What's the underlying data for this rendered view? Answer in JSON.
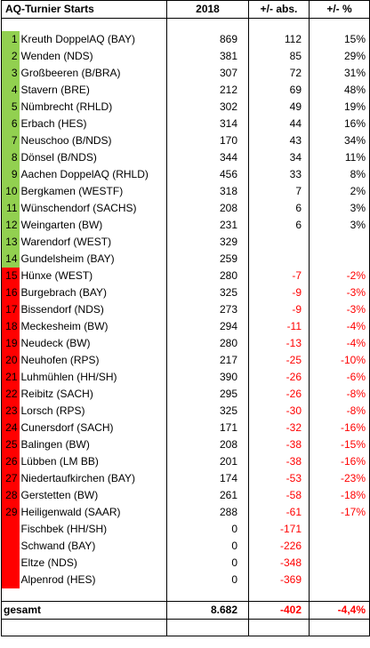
{
  "header": {
    "title": "AQ-Turnier Starts",
    "year": "2018",
    "abs": "+/- abs.",
    "pct": "+/- %"
  },
  "rows": [
    {
      "rank": "1",
      "name": "Kreuth DoppelAQ (BAY)",
      "starts": "869",
      "abs": "112",
      "pct": "15%",
      "status": "green"
    },
    {
      "rank": "2",
      "name": "Wenden (NDS)",
      "starts": "381",
      "abs": "85",
      "pct": "29%",
      "status": "green"
    },
    {
      "rank": "3",
      "name": "Großbeeren (B/BRA)",
      "starts": "307",
      "abs": "72",
      "pct": "31%",
      "status": "green"
    },
    {
      "rank": "4",
      "name": "Stavern (BRE)",
      "starts": "212",
      "abs": "69",
      "pct": "48%",
      "status": "green"
    },
    {
      "rank": "5",
      "name": "Nümbrecht (RHLD)",
      "starts": "302",
      "abs": "49",
      "pct": "19%",
      "status": "green"
    },
    {
      "rank": "6",
      "name": "Erbach (HES)",
      "starts": "314",
      "abs": "44",
      "pct": "16%",
      "status": "green"
    },
    {
      "rank": "7",
      "name": "Neuschoo (B/NDS)",
      "starts": "170",
      "abs": "43",
      "pct": "34%",
      "status": "green"
    },
    {
      "rank": "8",
      "name": "Dönsel (B/NDS)",
      "starts": "344",
      "abs": "34",
      "pct": "11%",
      "status": "green"
    },
    {
      "rank": "9",
      "name": "Aachen DoppelAQ (RHLD)",
      "starts": "456",
      "abs": "33",
      "pct": "8%",
      "status": "green"
    },
    {
      "rank": "10",
      "name": "Bergkamen (WESTF)",
      "starts": "318",
      "abs": "7",
      "pct": "2%",
      "status": "green"
    },
    {
      "rank": "11",
      "name": "Wünschendorf (SACHS)",
      "starts": "208",
      "abs": "6",
      "pct": "3%",
      "status": "green"
    },
    {
      "rank": "12",
      "name": "Weingarten (BW)",
      "starts": "231",
      "abs": "6",
      "pct": "3%",
      "status": "green"
    },
    {
      "rank": "13",
      "name": "Warendorf (WEST)",
      "starts": "329",
      "abs": "",
      "pct": "",
      "status": "green"
    },
    {
      "rank": "14",
      "name": "Gundelsheim (BAY)",
      "starts": "259",
      "abs": "",
      "pct": "",
      "status": "green"
    },
    {
      "rank": "15",
      "name": "Hünxe (WEST)",
      "starts": "280",
      "abs": "-7",
      "pct": "-2%",
      "status": "red"
    },
    {
      "rank": "16",
      "name": "Burgebrach (BAY)",
      "starts": "325",
      "abs": "-9",
      "pct": "-3%",
      "status": "red"
    },
    {
      "rank": "17",
      "name": "Bissendorf (NDS)",
      "starts": "273",
      "abs": "-9",
      "pct": "-3%",
      "status": "red"
    },
    {
      "rank": "18",
      "name": "Meckesheim (BW)",
      "starts": "294",
      "abs": "-11",
      "pct": "-4%",
      "status": "red"
    },
    {
      "rank": "19",
      "name": "Neudeck (BW)",
      "starts": "280",
      "abs": "-13",
      "pct": "-4%",
      "status": "red"
    },
    {
      "rank": "20",
      "name": "Neuhofen (RPS)",
      "starts": "217",
      "abs": "-25",
      "pct": "-10%",
      "status": "red"
    },
    {
      "rank": "21",
      "name": "Luhmühlen (HH/SH)",
      "starts": "390",
      "abs": "-26",
      "pct": "-6%",
      "status": "red"
    },
    {
      "rank": "22",
      "name": "Reibitz (SACH)",
      "starts": "295",
      "abs": "-26",
      "pct": "-8%",
      "status": "red"
    },
    {
      "rank": "23",
      "name": "Lorsch (RPS)",
      "starts": "325",
      "abs": "-30",
      "pct": "-8%",
      "status": "red"
    },
    {
      "rank": "24",
      "name": "Cunersdorf (SACH)",
      "starts": "171",
      "abs": "-32",
      "pct": "-16%",
      "status": "red"
    },
    {
      "rank": "25",
      "name": "Balingen (BW)",
      "starts": "208",
      "abs": "-38",
      "pct": "-15%",
      "status": "red"
    },
    {
      "rank": "26",
      "name": "Lübben (LM BB)",
      "starts": "201",
      "abs": "-38",
      "pct": "-16%",
      "status": "red"
    },
    {
      "rank": "27",
      "name": "Niedertaufkirchen (BAY)",
      "starts": "174",
      "abs": "-53",
      "pct": "-23%",
      "status": "red"
    },
    {
      "rank": "28",
      "name": "Gerstetten (BW)",
      "starts": "261",
      "abs": "-58",
      "pct": "-18%",
      "status": "red"
    },
    {
      "rank": "29",
      "name": "Heiligenwald (SAAR)",
      "starts": "288",
      "abs": "-61",
      "pct": "-17%",
      "status": "red"
    },
    {
      "rank": "",
      "name": "Fischbek (HH/SH)",
      "starts": "0",
      "abs": "-171",
      "pct": "",
      "status": "red"
    },
    {
      "rank": "",
      "name": "Schwand (BAY)",
      "starts": "0",
      "abs": "-226",
      "pct": "",
      "status": "red"
    },
    {
      "rank": "",
      "name": "Eltze (NDS)",
      "starts": "0",
      "abs": "-348",
      "pct": "",
      "status": "red"
    },
    {
      "rank": "",
      "name": "Alpenrod (HES)",
      "starts": "0",
      "abs": "-369",
      "pct": "",
      "status": "red"
    }
  ],
  "total": {
    "label": "gesamt",
    "starts": "8.682",
    "abs": "-402",
    "pct": "-4,4%"
  },
  "colors": {
    "positive": "#92d050",
    "negative": "#ff0000"
  }
}
